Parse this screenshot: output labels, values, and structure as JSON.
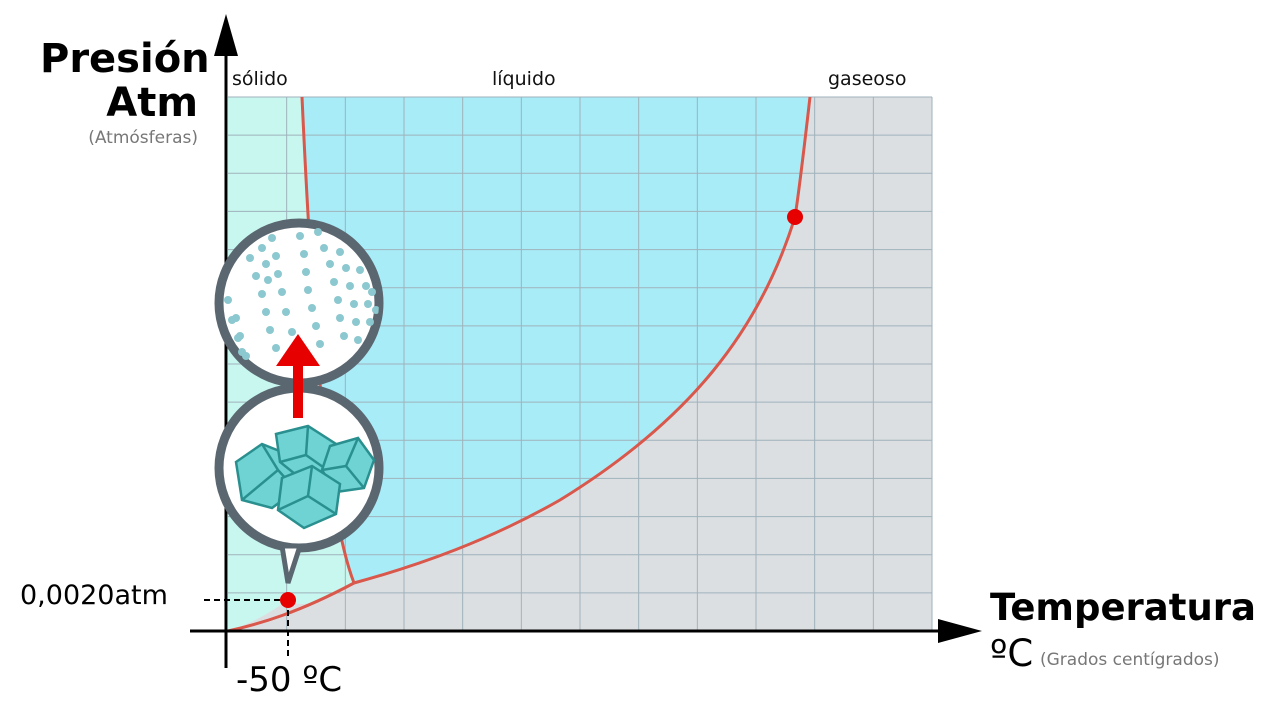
{
  "axes": {
    "y_title": "Presión",
    "y_title_line2": "Atm",
    "y_unit": "(Atmósferas)",
    "x_title": "Temperatura",
    "x_unit_symbol": "ºC",
    "x_unit": "(Grados centígrados)"
  },
  "phases": {
    "solid": "sólido",
    "liquid": "líquido",
    "gas": "gaseoso"
  },
  "markers": {
    "triple_point_pressure": "0,0020atm",
    "triple_point_temperature": "-50 ºC"
  },
  "colors": {
    "solid": "#c8f7ef",
    "liquid": "#a8ecf8",
    "gas": "#dcdfe2",
    "grid": "#9fb2bb",
    "boundary": "#d9574b",
    "point": "#e60000",
    "arrow": "#e60000",
    "bubble_border": "#5b6770",
    "ice": "#6fd3d3",
    "ice_dark": "#2a8f8f",
    "water_dots": "#8cc8cf"
  },
  "icons": {
    "liquid_bubble": "water-molecules-icon",
    "solid_bubble": "ice-cubes-icon",
    "transition_arrow": "arrow-up-icon"
  }
}
